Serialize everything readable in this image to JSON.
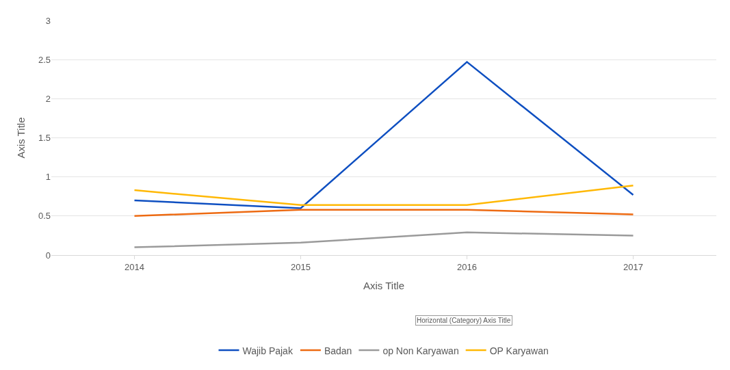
{
  "chart_data": {
    "type": "line",
    "xlabel": "Axis Title",
    "ylabel": "Axis Title",
    "categories": [
      "2014",
      "2015",
      "2016",
      "2017"
    ],
    "series": [
      {
        "name": "Wajib Pajak",
        "color": "#0e4fc1",
        "values": [
          0.7,
          0.6,
          2.47,
          0.77
        ]
      },
      {
        "name": "Badan",
        "color": "#ed6a12",
        "values": [
          0.5,
          0.58,
          0.58,
          0.52
        ]
      },
      {
        "name": "op Non Karyawan",
        "color": "#9a9a9a",
        "values": [
          0.1,
          0.16,
          0.29,
          0.25
        ]
      },
      {
        "name": "OP Karyawan",
        "color": "#ffb805",
        "values": [
          0.83,
          0.64,
          0.64,
          0.89
        ]
      }
    ],
    "ylim": [
      0,
      3
    ],
    "yticks": [
      0,
      0.5,
      1,
      1.5,
      2,
      2.5,
      3
    ],
    "grid": "y",
    "legend": "bottom",
    "marker": "none",
    "line_style": "solid",
    "annotations": [
      "Horizontal (Category) Axis Title"
    ]
  }
}
